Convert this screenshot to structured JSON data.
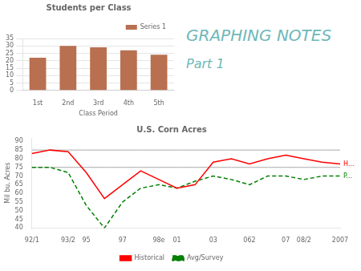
{
  "title": "GRAPHING NOTES",
  "subtitle": "Part 1",
  "color": "#6db8b8",
  "chart_data": [
    {
      "type": "bar",
      "title": "Students per Class",
      "xlabel": "Class Period",
      "categories": [
        "1st",
        "2nd",
        "3rd",
        "4th",
        "5th"
      ],
      "series": [
        {
          "name": "Series 1",
          "color": "#b87050",
          "values": [
            22,
            30,
            29,
            27,
            24
          ]
        }
      ],
      "ylim": [
        0,
        35
      ],
      "yticks": [
        0,
        5,
        10,
        15,
        20,
        25,
        30,
        35
      ],
      "grid": "y",
      "legend": "upper right"
    },
    {
      "type": "line",
      "title": "U.S. Corn Acres",
      "ylabel": "Mil bu. Acres",
      "categories": [
        "92/1",
        null,
        "93/2",
        "95",
        null,
        "97",
        null,
        "98e",
        "01",
        null,
        "03",
        null,
        "062",
        null,
        "07",
        "08/2",
        null,
        "2007"
      ],
      "series": [
        {
          "name": "Historical",
          "color": "red",
          "line_style": "solid",
          "values": [
            83,
            85,
            84,
            72,
            57,
            65,
            73,
            68,
            63,
            65,
            78,
            80,
            77,
            80,
            82,
            80,
            78,
            77
          ]
        },
        {
          "name": "Avg/Survey",
          "color": "green",
          "line_style": "dashed",
          "values": [
            75,
            75,
            72,
            53,
            40,
            55,
            63,
            65,
            63,
            67,
            70,
            68,
            65,
            70,
            70,
            68,
            70,
            70
          ]
        }
      ],
      "hlines": [
        85,
        75
      ],
      "ylim": [
        40,
        92
      ],
      "yticks": [
        40,
        45,
        50,
        55,
        60,
        65,
        70,
        75,
        80,
        85,
        90
      ],
      "grid": false,
      "legend": "bottom",
      "annotations": [
        {
          "text": "H...",
          "series": "Historical"
        },
        {
          "text": "P...",
          "series": "Avg/Survey"
        }
      ]
    }
  ]
}
